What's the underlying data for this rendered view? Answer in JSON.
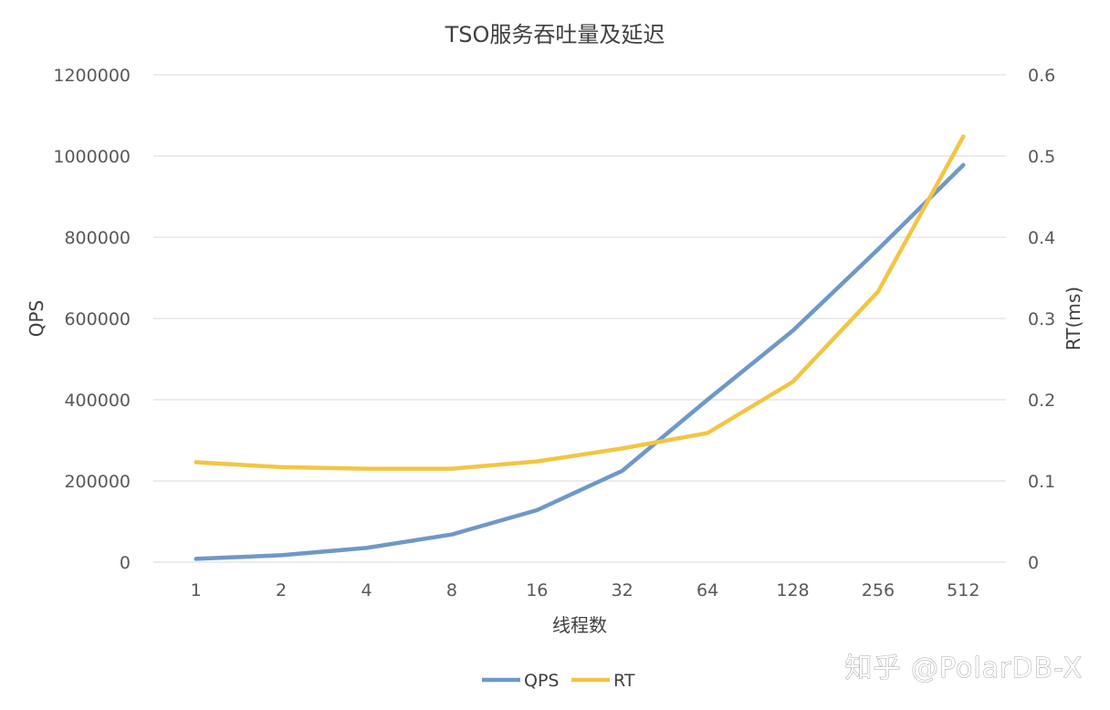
{
  "chart_data": {
    "type": "line",
    "title": "TSO服务吞吐量及延迟",
    "xlabel": "线程数",
    "ylabel": "QPS",
    "y2label": "RT(ms)",
    "categories": [
      "1",
      "2",
      "4",
      "8",
      "16",
      "32",
      "64",
      "128",
      "256",
      "512"
    ],
    "ylim": [
      0,
      1200000
    ],
    "yticks": [
      "0",
      "200000",
      "400000",
      "600000",
      "800000",
      "1000000",
      "1200000"
    ],
    "y2lim": [
      0,
      0.6
    ],
    "y2ticks": [
      "0",
      "0.1",
      "0.2",
      "0.3",
      "0.4",
      "0.5",
      "0.6"
    ],
    "grid": true,
    "legend_position": "bottom",
    "series": [
      {
        "name": "QPS",
        "axis": "left",
        "color": "#6E98C8",
        "values": [
          8000,
          17000,
          35000,
          68000,
          128000,
          225000,
          400000,
          570000,
          770000,
          978000
        ]
      },
      {
        "name": "RT",
        "axis": "right",
        "color": "#F2C544",
        "values": [
          0.123,
          0.117,
          0.115,
          0.115,
          0.124,
          0.14,
          0.159,
          0.222,
          0.333,
          0.524
        ]
      }
    ]
  },
  "watermark": "知乎 @PolarDB-X"
}
